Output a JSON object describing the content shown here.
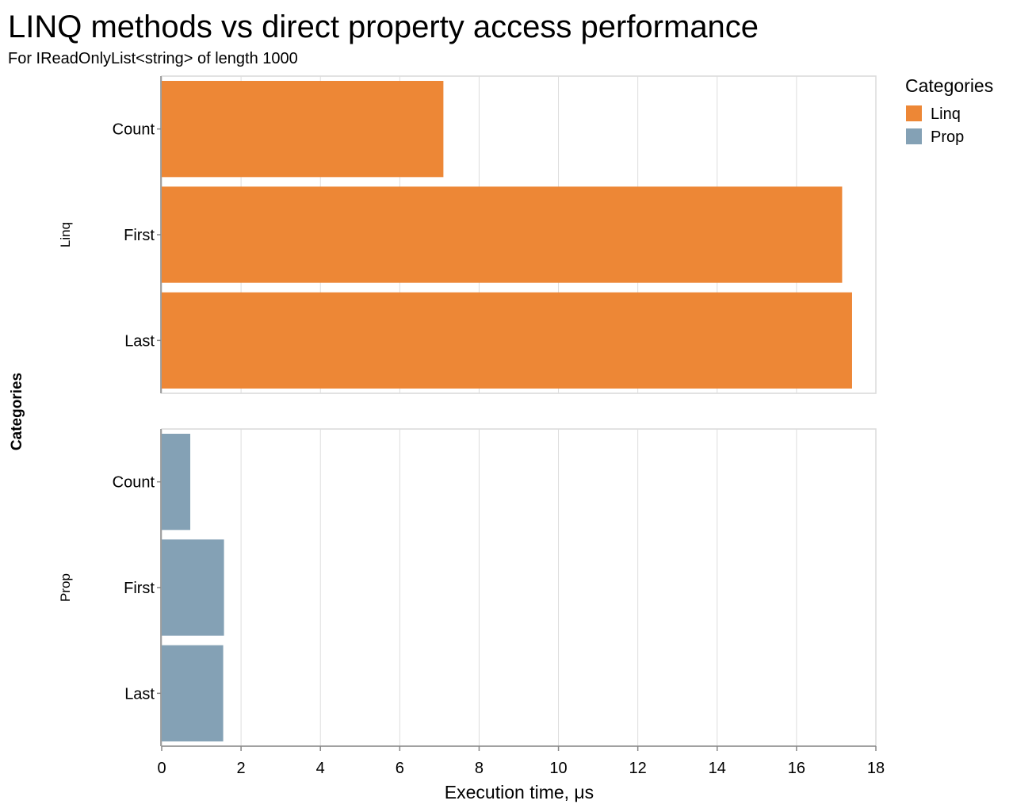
{
  "chart_data": {
    "type": "bar",
    "orientation": "horizontal",
    "title": "LINQ methods vs direct property access performance",
    "subtitle": "For IReadOnlyList<string> of length 1000",
    "xlabel": "Execution time, μs",
    "facet_axis_title": "Categories",
    "xlim": [
      0,
      18
    ],
    "x_ticks": [
      0,
      2,
      4,
      6,
      8,
      10,
      12,
      14,
      16,
      18
    ],
    "grid": true,
    "legend": {
      "title": "Categories",
      "placement": "top-right",
      "entries": [
        {
          "name": "Linq",
          "color": "#ed8736"
        },
        {
          "name": "Prop",
          "color": "#84a1b5"
        }
      ]
    },
    "categories": [
      "Count",
      "First",
      "Last"
    ],
    "facets": [
      {
        "name": "Linq",
        "color": "#ed8736",
        "values": [
          7.1,
          17.15,
          17.4
        ]
      },
      {
        "name": "Prop",
        "color": "#84a1b5",
        "values": [
          0.72,
          1.57,
          1.55
        ]
      }
    ]
  }
}
